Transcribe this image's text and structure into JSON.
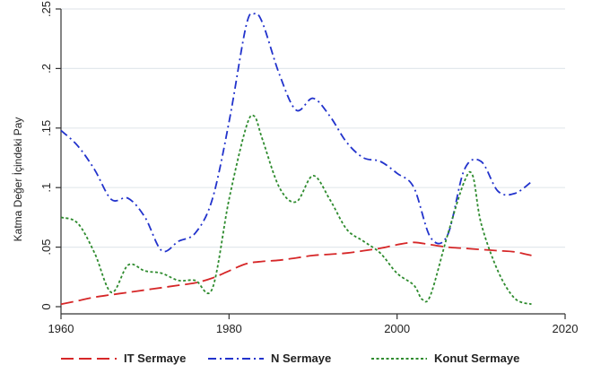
{
  "chart_data": {
    "type": "line",
    "title": "",
    "xlabel": "",
    "ylabel": "Katma Değer İçindeki Pay",
    "xlim": [
      1960,
      2020
    ],
    "ylim": [
      0,
      0.25
    ],
    "x_ticks": [
      1960,
      1980,
      2000,
      2020
    ],
    "x_tick_labels": [
      "1960",
      "1980",
      "2000",
      "2020"
    ],
    "y_ticks": [
      0,
      0.05,
      0.1,
      0.15,
      0.2,
      0.25
    ],
    "y_tick_labels": [
      "0",
      ".05",
      ".1",
      ".15",
      ".2",
      ".25"
    ],
    "grid": "horizontal",
    "legend_position": "bottom",
    "series": [
      {
        "name": "IT Sermaye",
        "color": "#d62728",
        "dash": "long-dash",
        "points": [
          [
            1960,
            0.002
          ],
          [
            1962,
            0.005
          ],
          [
            1964,
            0.008
          ],
          [
            1966,
            0.01
          ],
          [
            1968,
            0.012
          ],
          [
            1970,
            0.014
          ],
          [
            1972,
            0.016
          ],
          [
            1974,
            0.018
          ],
          [
            1976,
            0.02
          ],
          [
            1978,
            0.024
          ],
          [
            1980,
            0.03
          ],
          [
            1982,
            0.036
          ],
          [
            1984,
            0.038
          ],
          [
            1986,
            0.039
          ],
          [
            1988,
            0.041
          ],
          [
            1990,
            0.043
          ],
          [
            1992,
            0.044
          ],
          [
            1994,
            0.045
          ],
          [
            1996,
            0.047
          ],
          [
            1998,
            0.049
          ],
          [
            2000,
            0.052
          ],
          [
            2002,
            0.054
          ],
          [
            2004,
            0.052
          ],
          [
            2006,
            0.05
          ],
          [
            2008,
            0.049
          ],
          [
            2010,
            0.048
          ],
          [
            2012,
            0.047
          ],
          [
            2014,
            0.046
          ],
          [
            2016,
            0.043
          ]
        ]
      },
      {
        "name": "N Sermaye",
        "color": "#2233cc",
        "dash": "dash-dot",
        "points": [
          [
            1960,
            0.148
          ],
          [
            1962,
            0.135
          ],
          [
            1964,
            0.115
          ],
          [
            1966,
            0.09
          ],
          [
            1968,
            0.091
          ],
          [
            1970,
            0.075
          ],
          [
            1972,
            0.047
          ],
          [
            1974,
            0.055
          ],
          [
            1976,
            0.062
          ],
          [
            1978,
            0.09
          ],
          [
            1980,
            0.155
          ],
          [
            1982,
            0.235
          ],
          [
            1983,
            0.246
          ],
          [
            1984,
            0.238
          ],
          [
            1986,
            0.195
          ],
          [
            1988,
            0.165
          ],
          [
            1990,
            0.175
          ],
          [
            1992,
            0.16
          ],
          [
            1994,
            0.138
          ],
          [
            1996,
            0.125
          ],
          [
            1998,
            0.122
          ],
          [
            2000,
            0.112
          ],
          [
            2002,
            0.1
          ],
          [
            2004,
            0.058
          ],
          [
            2006,
            0.06
          ],
          [
            2008,
            0.115
          ],
          [
            2010,
            0.122
          ],
          [
            2012,
            0.097
          ],
          [
            2014,
            0.095
          ],
          [
            2016,
            0.105
          ]
        ]
      },
      {
        "name": "Konut Sermaye",
        "color": "#2e8b2e",
        "dash": "dotted",
        "points": [
          [
            1960,
            0.075
          ],
          [
            1962,
            0.07
          ],
          [
            1964,
            0.045
          ],
          [
            1966,
            0.012
          ],
          [
            1968,
            0.035
          ],
          [
            1970,
            0.03
          ],
          [
            1972,
            0.028
          ],
          [
            1974,
            0.022
          ],
          [
            1976,
            0.022
          ],
          [
            1978,
            0.015
          ],
          [
            1980,
            0.09
          ],
          [
            1982,
            0.15
          ],
          [
            1983,
            0.16
          ],
          [
            1984,
            0.14
          ],
          [
            1986,
            0.1
          ],
          [
            1988,
            0.088
          ],
          [
            1990,
            0.11
          ],
          [
            1992,
            0.09
          ],
          [
            1994,
            0.065
          ],
          [
            1996,
            0.055
          ],
          [
            1998,
            0.045
          ],
          [
            2000,
            0.028
          ],
          [
            2002,
            0.018
          ],
          [
            2003,
            0.006
          ],
          [
            2004,
            0.01
          ],
          [
            2006,
            0.06
          ],
          [
            2008,
            0.105
          ],
          [
            2009,
            0.11
          ],
          [
            2010,
            0.07
          ],
          [
            2012,
            0.03
          ],
          [
            2014,
            0.007
          ],
          [
            2016,
            0.002
          ]
        ]
      }
    ]
  }
}
